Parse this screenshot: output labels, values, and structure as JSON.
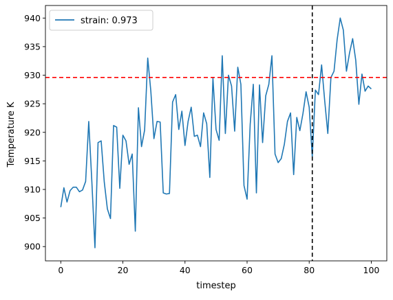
{
  "chart_data": {
    "type": "line",
    "xlabel": "timestep",
    "ylabel": "Temperature K",
    "xlim": [
      -4.95,
      105.0
    ],
    "ylim": [
      897.5,
      942.2
    ],
    "xticks": [
      0,
      20,
      40,
      60,
      80,
      100
    ],
    "yticks": [
      900,
      905,
      910,
      915,
      920,
      925,
      930,
      935,
      940
    ],
    "grid": false,
    "legend_position": "upper-left",
    "series": [
      {
        "name": "strain: 0.973",
        "color": "#1f77b4",
        "x": [
          0,
          1,
          2,
          3,
          4,
          5,
          6,
          7,
          8,
          9,
          10,
          11,
          12,
          13,
          14,
          15,
          16,
          17,
          18,
          19,
          20,
          21,
          22,
          23,
          24,
          25,
          26,
          27,
          28,
          29,
          30,
          31,
          32,
          33,
          34,
          35,
          36,
          37,
          38,
          39,
          40,
          41,
          42,
          43,
          44,
          45,
          46,
          47,
          48,
          49,
          50,
          51,
          52,
          53,
          54,
          55,
          56,
          57,
          58,
          59,
          60,
          61,
          62,
          63,
          64,
          65,
          66,
          67,
          68,
          69,
          70,
          71,
          72,
          73,
          74,
          75,
          76,
          77,
          78,
          79,
          80,
          81,
          82,
          83,
          84,
          85,
          86,
          87,
          88,
          89,
          90,
          91,
          92,
          93,
          94,
          95,
          96,
          97,
          98,
          99,
          100
        ],
        "values": [
          906.9,
          910.3,
          907.8,
          909.8,
          910.4,
          910.4,
          909.6,
          909.9,
          911.4,
          921.9,
          911.4,
          899.8,
          918.2,
          918.5,
          911.3,
          906.6,
          904.9,
          921.2,
          920.9,
          910.2,
          919.5,
          918.5,
          914.4,
          916.2,
          902.7,
          924.3,
          917.5,
          920.4,
          933.0,
          927.2,
          918.9,
          921.9,
          921.8,
          909.4,
          909.2,
          909.3,
          925.3,
          926.6,
          920.5,
          923.7,
          917.7,
          921.9,
          924.4,
          919.3,
          919.5,
          917.5,
          923.4,
          921.5,
          912.1,
          929.5,
          920.5,
          918.6,
          933.4,
          919.8,
          930.0,
          928.1,
          920.2,
          931.4,
          928.4,
          910.7,
          908.3,
          921.4,
          928.4,
          909.4,
          928.3,
          918.2,
          926.4,
          928.4,
          933.4,
          916.2,
          914.7,
          915.4,
          917.9,
          921.9,
          923.4,
          912.6,
          922.6,
          920.3,
          923.3,
          927.1,
          924.4,
          915.7,
          927.4,
          926.6,
          931.8,
          925.5,
          919.8,
          929.6,
          930.7,
          936.2,
          940.0,
          937.9,
          930.7,
          933.9,
          936.4,
          932.6,
          924.9,
          930.2,
          927.2,
          928.1,
          927.6
        ]
      }
    ],
    "annotations": [
      {
        "kind": "horizontal-line",
        "y": 929.6,
        "color": "#ff0000",
        "style": "dashed"
      },
      {
        "kind": "vertical-line",
        "x": 81,
        "color": "#000000",
        "style": "dashed"
      }
    ]
  }
}
